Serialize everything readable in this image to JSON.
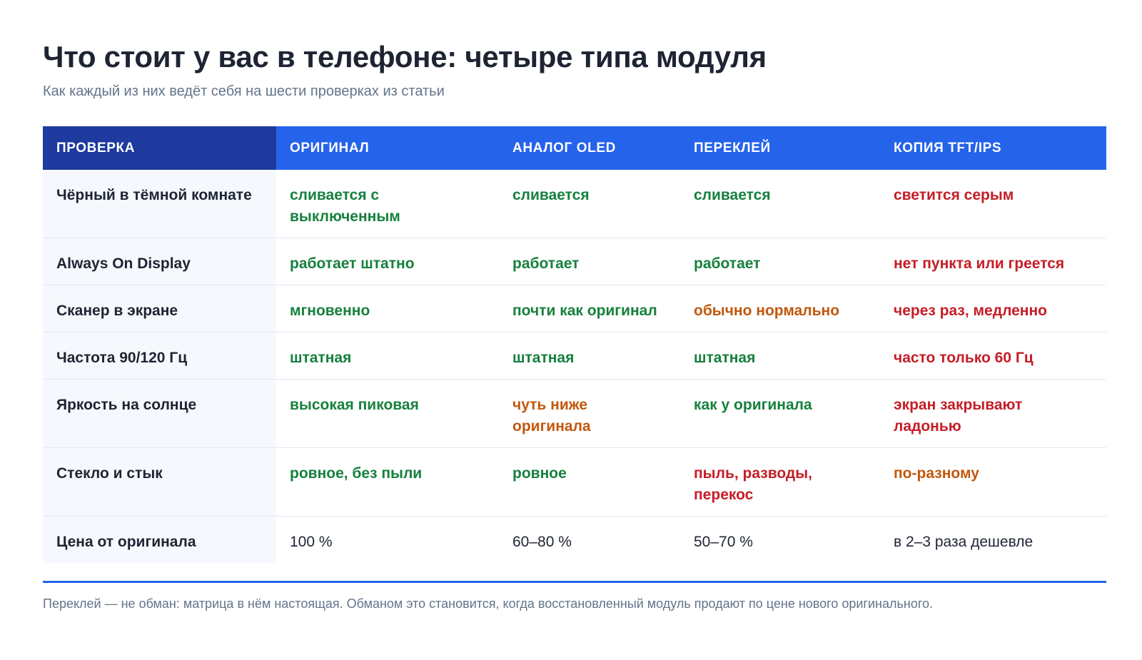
{
  "title": "Что стоит у вас в телефоне: четыре типа модуля",
  "subtitle": "Как каждый из них ведёт себя на шести проверках из статьи",
  "table": {
    "headers": [
      "ПРОВЕРКА",
      "ОРИГИНАЛ",
      "АНАЛОГ OLED",
      "ПЕРЕКЛЕЙ",
      "КОПИЯ TFT/IPS"
    ],
    "rows": [
      {
        "label": "Чёрный в тёмной комнате",
        "cells": [
          {
            "text": "сливается с выключенным",
            "status": "good"
          },
          {
            "text": "сливается",
            "status": "good"
          },
          {
            "text": "сливается",
            "status": "good"
          },
          {
            "text": "светится серым",
            "status": "bad"
          }
        ]
      },
      {
        "label": "Always On Display",
        "cells": [
          {
            "text": "работает штатно",
            "status": "good"
          },
          {
            "text": "работает",
            "status": "good"
          },
          {
            "text": "работает",
            "status": "good"
          },
          {
            "text": "нет пункта или греется",
            "status": "bad"
          }
        ]
      },
      {
        "label": "Сканер в экране",
        "cells": [
          {
            "text": "мгновенно",
            "status": "good"
          },
          {
            "text": "почти как оригинал",
            "status": "good"
          },
          {
            "text": "обычно нормально",
            "status": "mid"
          },
          {
            "text": "через раз, медленно",
            "status": "bad"
          }
        ]
      },
      {
        "label": "Частота 90/120 Гц",
        "cells": [
          {
            "text": "штатная",
            "status": "good"
          },
          {
            "text": "штатная",
            "status": "good"
          },
          {
            "text": "штатная",
            "status": "good"
          },
          {
            "text": "часто только 60 Гц",
            "status": "bad"
          }
        ]
      },
      {
        "label": "Яркость на солнце",
        "cells": [
          {
            "text": "высокая пиковая",
            "status": "good"
          },
          {
            "text": "чуть ниже оригинала",
            "status": "mid"
          },
          {
            "text": "как у оригинала",
            "status": "good"
          },
          {
            "text": "экран закрывают ладонью",
            "status": "bad"
          }
        ]
      },
      {
        "label": "Стекло и стык",
        "cells": [
          {
            "text": "ровное, без пыли",
            "status": "good"
          },
          {
            "text": "ровное",
            "status": "good"
          },
          {
            "text": "пыль, разводы, перекос",
            "status": "bad"
          },
          {
            "text": "по-разному",
            "status": "mid"
          }
        ]
      },
      {
        "label": "Цена от оригинала",
        "cells": [
          {
            "text": "100 %",
            "status": "plain"
          },
          {
            "text": "60–80 %",
            "status": "plain"
          },
          {
            "text": "50–70 %",
            "status": "plain"
          },
          {
            "text": "в 2–3 раза дешевле",
            "status": "plain"
          }
        ]
      }
    ]
  },
  "colors": {
    "good": "#16803d",
    "mid": "#c2570c",
    "bad": "#c51d26",
    "header": "#2563eb",
    "header_first": "#1e3a9f"
  },
  "footnote": "Переклей — не обман: матрица в нём настоящая. Обманом это становится, когда восстановленный модуль продают по цене нового оригинального."
}
